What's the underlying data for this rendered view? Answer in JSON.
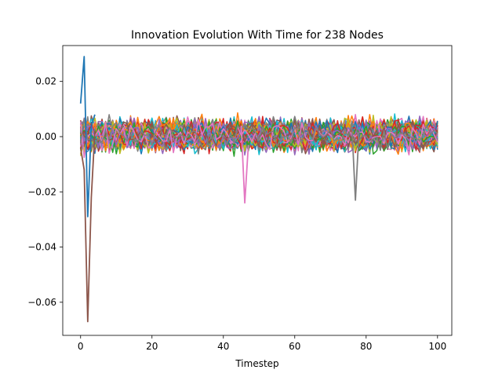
{
  "chart_data": {
    "type": "line",
    "title": "Innovation Evolution With Time for 238 Nodes",
    "xlabel": "Timestep",
    "ylabel": "",
    "xlim": [
      -5,
      104
    ],
    "ylim": [
      -0.072,
      0.033
    ],
    "x_ticks": [
      0,
      20,
      40,
      60,
      80,
      100
    ],
    "y_ticks": [
      0.02,
      0.0,
      -0.02,
      -0.04,
      -0.06
    ],
    "x_tick_labels": [
      "0",
      "20",
      "40",
      "60",
      "80",
      "100"
    ],
    "y_tick_labels": [
      "0.02",
      "0.00",
      "−0.02",
      "−0.04",
      "−0.06"
    ],
    "timesteps": [
      0,
      100
    ],
    "series_count": 238,
    "typical_range": [
      -0.017,
      0.018
    ],
    "palette": [
      "#1f77b4",
      "#ff7f0e",
      "#2ca02c",
      "#d62728",
      "#9467bd",
      "#8c564b",
      "#e377c2",
      "#7f7f7f",
      "#bcbd22",
      "#17becf"
    ],
    "notable_series": [
      {
        "color": "#1f77b4",
        "points": [
          [
            0,
            0.012
          ],
          [
            1,
            0.029
          ],
          [
            2,
            -0.029
          ],
          [
            3,
            0.004
          ],
          [
            4,
            0.008
          ]
        ]
      },
      {
        "color": "#8c564b",
        "points": [
          [
            0,
            -0.004
          ],
          [
            1,
            -0.012
          ],
          [
            2,
            -0.067
          ],
          [
            3,
            -0.022
          ],
          [
            4,
            0.002
          ]
        ]
      },
      {
        "color": "#e377c2",
        "points": [
          [
            45,
            0.004
          ],
          [
            46,
            -0.024
          ],
          [
            47,
            -0.003
          ]
        ]
      },
      {
        "color": "#7f7f7f",
        "points": [
          [
            76,
            0.004
          ],
          [
            77,
            -0.023
          ],
          [
            78,
            0.002
          ]
        ]
      }
    ]
  }
}
